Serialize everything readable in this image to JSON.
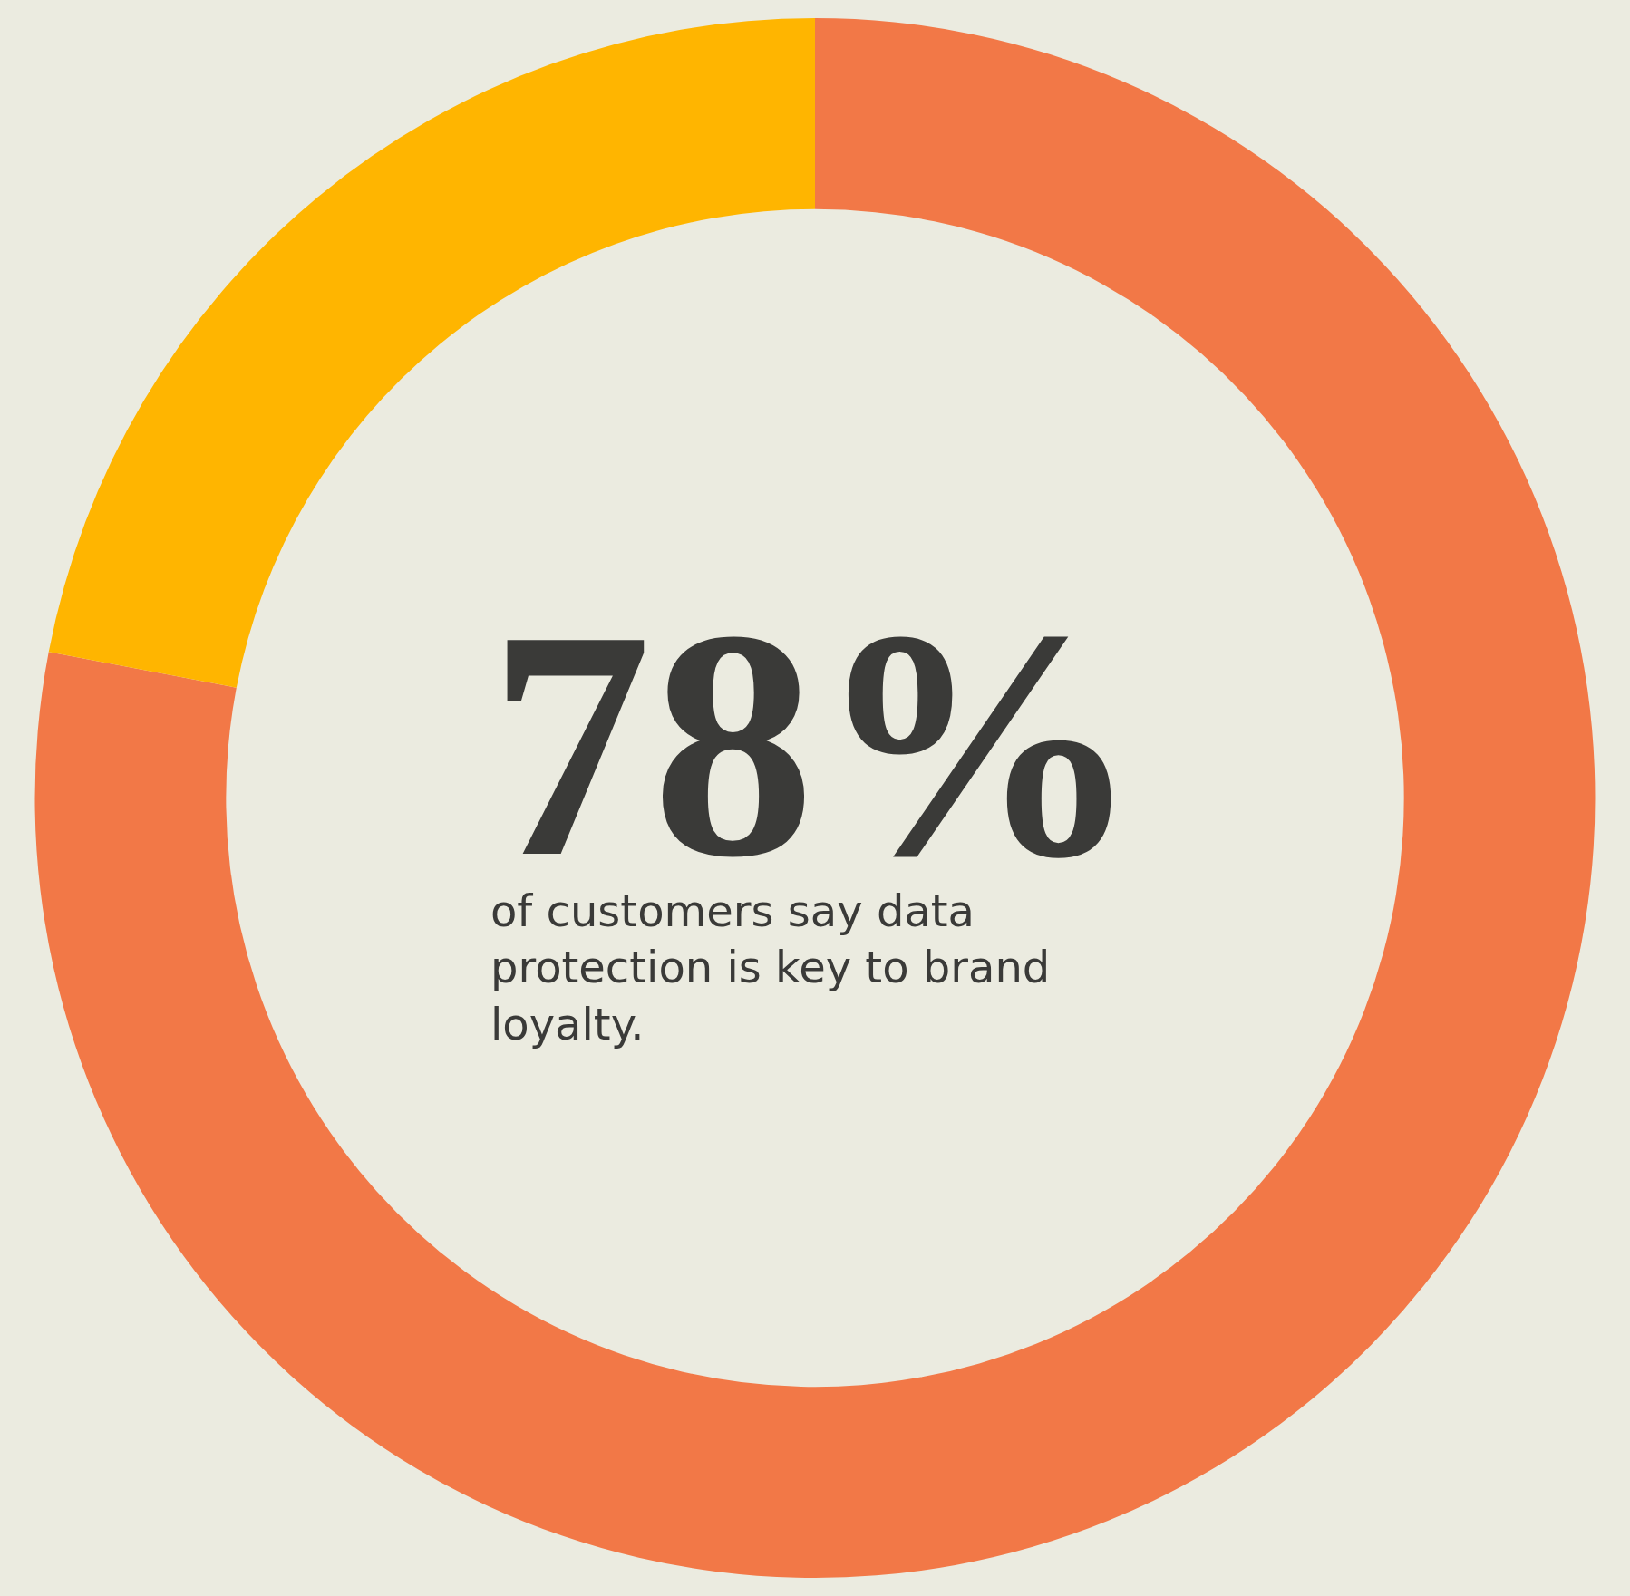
{
  "chart_data": {
    "type": "donut",
    "categories": [
      null,
      null
    ],
    "values": [
      78,
      22
    ],
    "colors": [
      "#f27847",
      "#ffb500"
    ],
    "annotations": [
      "78%",
      "of customers say data\nprotection is key to brand\nloyalty."
    ]
  }
}
